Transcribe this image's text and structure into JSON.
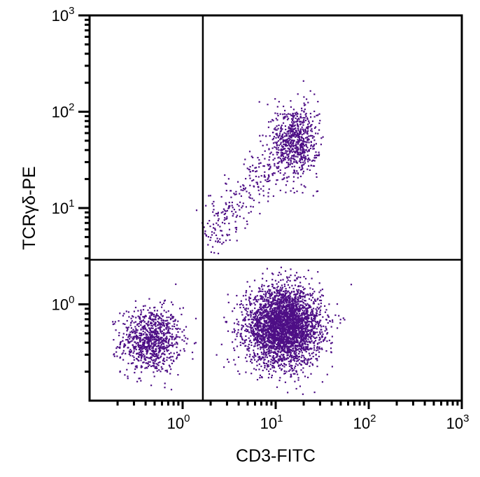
{
  "chart_data": {
    "type": "scatter",
    "title": "",
    "xlabel": "CD3-FITC",
    "ylabel": "TCRγδ-PE",
    "xscale": "log",
    "yscale": "log",
    "xlim": [
      0.1,
      1000
    ],
    "ylim": [
      0.1,
      1000
    ],
    "xticks": [
      {
        "value": 1,
        "base": "10",
        "exp": "0"
      },
      {
        "value": 10,
        "base": "10",
        "exp": "1"
      },
      {
        "value": 100,
        "base": "10",
        "exp": "2"
      },
      {
        "value": 1000,
        "base": "10",
        "exp": "3"
      }
    ],
    "yticks": [
      {
        "value": 1,
        "base": "10",
        "exp": "0"
      },
      {
        "value": 10,
        "base": "10",
        "exp": "1"
      },
      {
        "value": 100,
        "base": "10",
        "exp": "2"
      },
      {
        "value": 1000,
        "base": "10",
        "exp": "3"
      }
    ],
    "grid": false,
    "quadrant_gates": {
      "x": 1.65,
      "y": 2.9
    },
    "point_color": "#4e0f86",
    "populations": [
      {
        "center": [
          0.45,
          0.43
        ],
        "spread_decades": [
          0.16,
          0.17
        ],
        "count": 900
      },
      {
        "center": [
          12,
          0.6
        ],
        "spread_decades": [
          0.2,
          0.2
        ],
        "count": 3400
      },
      {
        "center": [
          16,
          50
        ],
        "spread_decades": [
          0.12,
          0.19
        ],
        "count": 700
      },
      {
        "from": [
          2,
          5.5
        ],
        "to": [
          10,
          35
        ],
        "spread_decades": [
          0.1,
          0.12
        ],
        "count": 260
      }
    ]
  }
}
